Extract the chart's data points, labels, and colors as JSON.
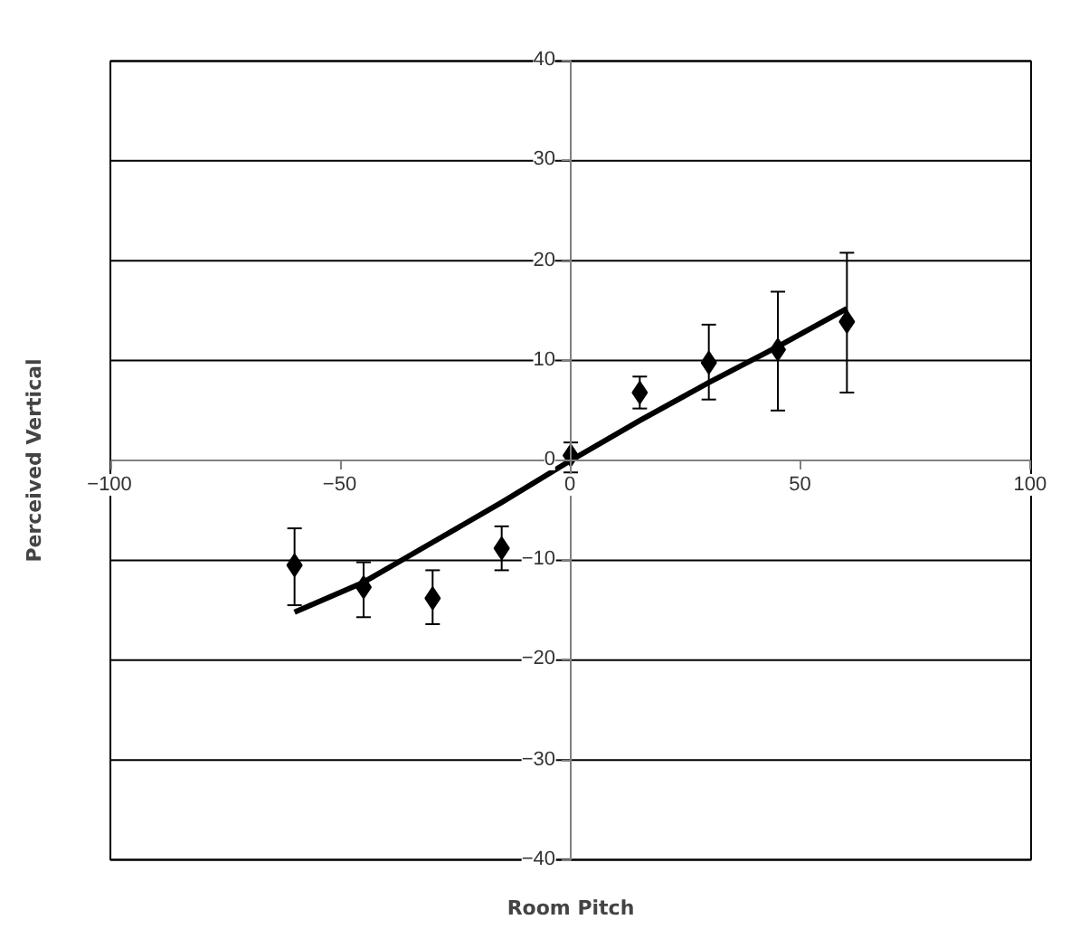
{
  "chart_data": {
    "type": "scatter",
    "xlabel": "Room Pitch",
    "ylabel": "Perceived Vertical",
    "xlim": [
      -100,
      100
    ],
    "ylim": [
      -40,
      40
    ],
    "xticks": [
      -100,
      -50,
      0,
      50,
      100
    ],
    "yticks": [
      -40,
      -30,
      -20,
      -10,
      0,
      10,
      20,
      30,
      40
    ],
    "grid": "y",
    "legend": false,
    "marker": "diamond",
    "series": [
      {
        "type": "scatter",
        "color": "#000000",
        "x": [
          -60,
          -45,
          -30,
          -15,
          0,
          15,
          30,
          45,
          60
        ],
        "values": [
          -10.5,
          -12.7,
          -13.8,
          -8.8,
          0.5,
          6.8,
          9.8,
          11.1,
          13.9
        ],
        "errors": [
          [
            -14.5,
            -6.8
          ],
          [
            -15.7,
            -10.2
          ],
          [
            -16.4,
            -11
          ],
          [
            -11,
            -6.6
          ],
          [
            -1.2,
            1.8
          ],
          [
            5.2,
            8.4
          ],
          [
            6.1,
            13.6
          ],
          [
            5,
            16.9
          ],
          [
            6.8,
            20.8
          ]
        ]
      },
      {
        "type": "line",
        "color": "#000000",
        "line_style": "solid",
        "marker": "none",
        "x": [
          -60,
          -45,
          -30,
          -15,
          0,
          15,
          30,
          45,
          60
        ],
        "values": [
          -15.2,
          -12.2,
          -8.2,
          -4.2,
          0,
          4,
          7.8,
          11.4,
          15.2
        ]
      }
    ]
  }
}
